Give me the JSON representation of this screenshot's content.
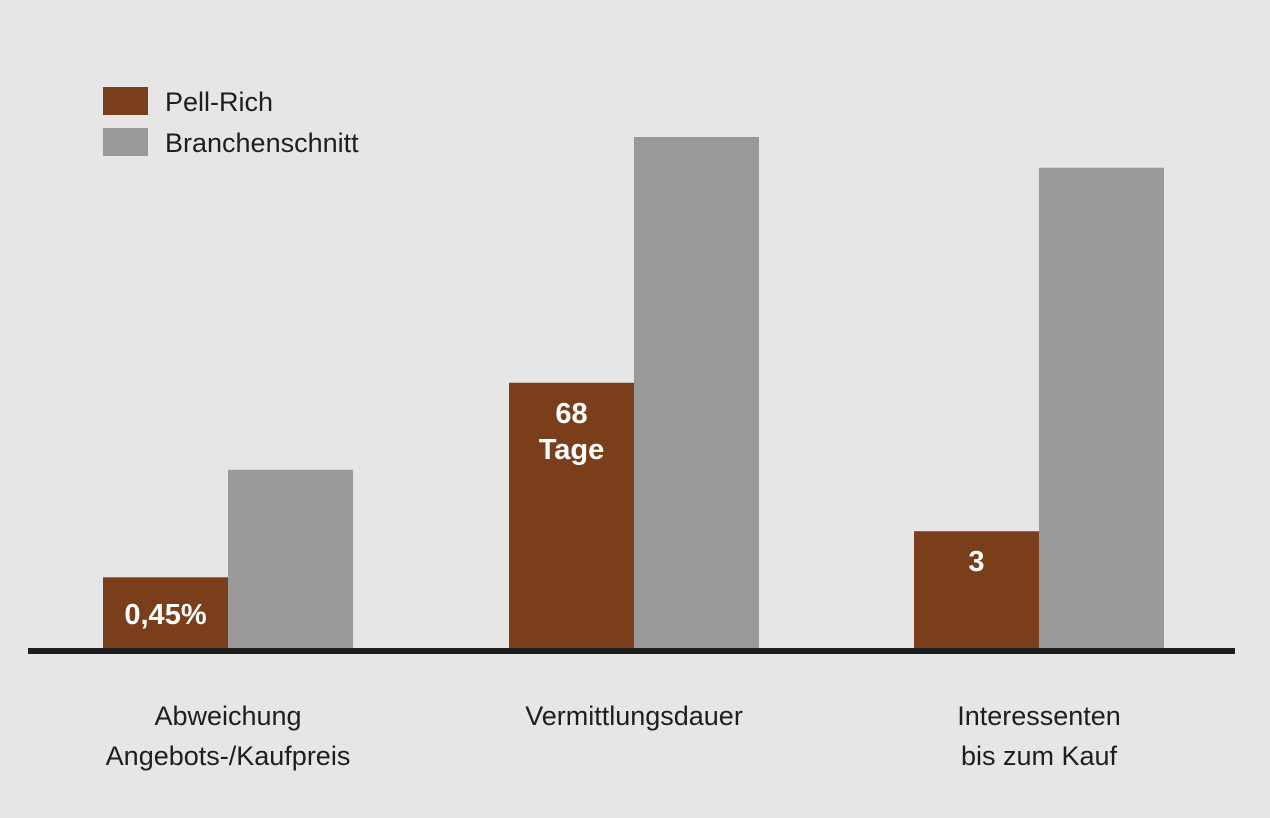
{
  "chart_data": {
    "type": "bar",
    "categories": [
      [
        "Abweichung",
        "Angebots-/Kaufpreis"
      ],
      [
        "Vermittlungsdauer"
      ],
      [
        "Interessenten",
        "bis zum Kauf"
      ]
    ],
    "series": [
      {
        "name": "Pell-Rich",
        "color": "#7a3e1b",
        "values": [
          0.14,
          0.52,
          0.23
        ],
        "value_labels": [
          [
            "0,45%"
          ],
          [
            "68",
            "Tage"
          ],
          [
            "3"
          ]
        ]
      },
      {
        "name": "Branchenschnitt",
        "color": "#999999",
        "values": [
          0.35,
          1.0,
          0.94
        ]
      }
    ],
    "value_scale": "relative (no axis printed; Branchenschnitt Vermittlungsdauer = 1.0)",
    "ylim": [
      0,
      1.0
    ],
    "grid": false,
    "legend_position": "top-left",
    "baseline_color": "#1e1e1e"
  }
}
